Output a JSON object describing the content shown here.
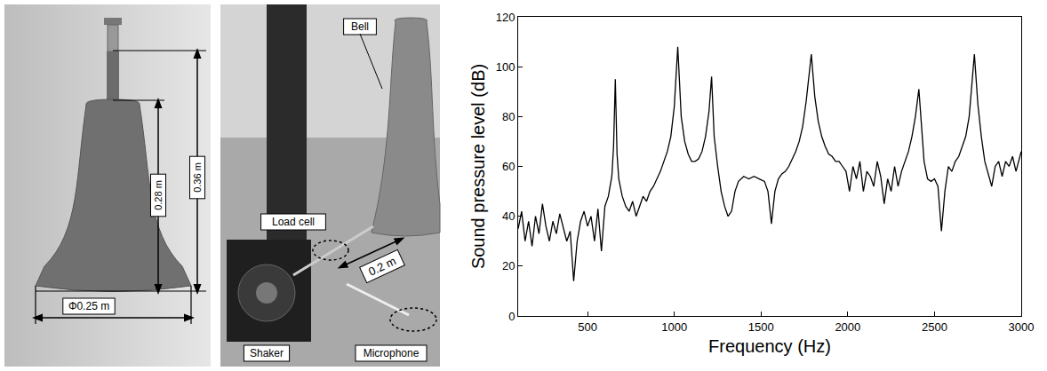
{
  "panels": {
    "bell_photo": {
      "height_body": "0.28 m",
      "height_total": "0.36 m",
      "diameter": "Φ0.25 m"
    },
    "setup_photo": {
      "bell": "Bell",
      "load_cell": "Load cell",
      "distance": "0.2 m",
      "shaker": "Shaker",
      "microphone": "Microphone"
    }
  },
  "chart_data": {
    "type": "line",
    "x_label": "Frequency (Hz)",
    "y_label": "Sound pressure level (dB)",
    "xlim": [
      100,
      3000
    ],
    "xticks": [
      500,
      1000,
      1500,
      2000,
      2500,
      3000
    ],
    "ylim": [
      0,
      120
    ],
    "yticks": [
      0,
      20,
      40,
      60,
      80,
      100,
      120
    ],
    "grid": false,
    "color": "#000000",
    "x": [
      100,
      120,
      140,
      160,
      180,
      200,
      220,
      240,
      260,
      280,
      300,
      320,
      340,
      360,
      380,
      400,
      420,
      440,
      460,
      480,
      500,
      520,
      540,
      560,
      580,
      600,
      620,
      640,
      650,
      660,
      670,
      680,
      700,
      720,
      740,
      760,
      780,
      800,
      820,
      840,
      860,
      880,
      900,
      920,
      940,
      960,
      980,
      1000,
      1020,
      1040,
      1060,
      1080,
      1100,
      1120,
      1140,
      1160,
      1180,
      1200,
      1215,
      1230,
      1250,
      1270,
      1290,
      1310,
      1330,
      1350,
      1370,
      1400,
      1430,
      1460,
      1490,
      1520,
      1540,
      1560,
      1580,
      1600,
      1620,
      1640,
      1660,
      1680,
      1700,
      1720,
      1740,
      1760,
      1790,
      1810,
      1830,
      1850,
      1870,
      1890,
      1910,
      1930,
      1950,
      1970,
      1990,
      2010,
      2030,
      2050,
      2070,
      2090,
      2110,
      2130,
      2150,
      2170,
      2190,
      2210,
      2230,
      2250,
      2270,
      2290,
      2310,
      2330,
      2350,
      2370,
      2390,
      2410,
      2425,
      2440,
      2460,
      2480,
      2500,
      2520,
      2540,
      2560,
      2580,
      2600,
      2620,
      2640,
      2660,
      2680,
      2700,
      2730,
      2750,
      2770,
      2790,
      2810,
      2830,
      2850,
      2870,
      2890,
      2910,
      2930,
      2950,
      2970,
      3000
    ],
    "values": [
      35,
      42,
      30,
      38,
      28,
      40,
      33,
      45,
      36,
      30,
      38,
      33,
      41,
      36,
      30,
      34,
      14,
      30,
      38,
      42,
      36,
      40,
      30,
      43,
      26,
      44,
      48,
      56,
      68,
      95,
      65,
      55,
      48,
      44,
      42,
      46,
      40,
      44,
      48,
      46,
      50,
      52,
      55,
      58,
      62,
      66,
      72,
      84,
      108,
      80,
      70,
      65,
      62,
      62,
      63,
      66,
      72,
      82,
      96,
      72,
      60,
      50,
      44,
      40,
      42,
      50,
      54,
      56,
      55,
      56,
      55,
      54,
      50,
      37,
      50,
      55,
      57,
      58,
      60,
      63,
      66,
      70,
      76,
      86,
      105,
      88,
      78,
      72,
      68,
      65,
      64,
      62,
      62,
      60,
      58,
      50,
      60,
      55,
      62,
      50,
      58,
      56,
      52,
      62,
      56,
      45,
      55,
      50,
      60,
      52,
      58,
      62,
      66,
      72,
      80,
      91,
      75,
      62,
      55,
      54,
      55,
      52,
      34,
      50,
      60,
      58,
      62,
      64,
      68,
      72,
      80,
      105,
      85,
      72,
      62,
      57,
      52,
      60,
      62,
      56,
      62,
      60,
      64,
      58,
      66
    ]
  }
}
